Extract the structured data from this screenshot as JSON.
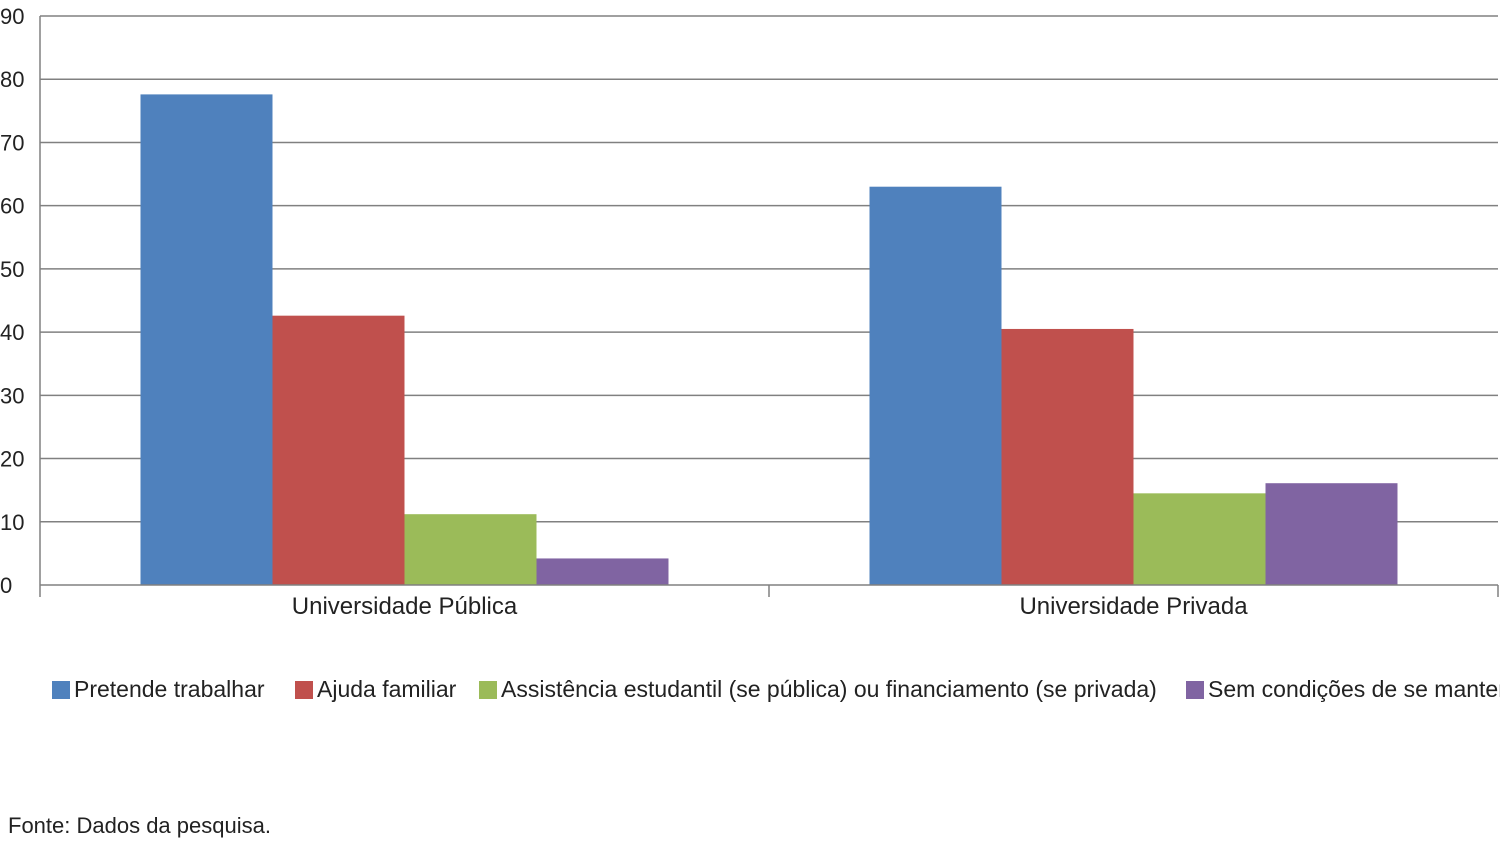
{
  "chart_data": {
    "type": "bar",
    "categories": [
      "Universidade Pública",
      "Universidade Privada"
    ],
    "series": [
      {
        "name": "Pretende trabalhar",
        "color": "#4F81BD",
        "values": [
          77.6,
          63.0
        ]
      },
      {
        "name": "Ajuda familiar",
        "color": "#C0504D",
        "values": [
          42.6,
          40.5
        ]
      },
      {
        "name": "Assistência estudantil (se pública) ou financiamento (se privada)",
        "color": "#9BBB59",
        "values": [
          11.2,
          14.5
        ]
      },
      {
        "name": "Sem condições de se manter",
        "color": "#8064A2",
        "values": [
          4.2,
          16.1
        ]
      }
    ],
    "ylim": [
      0,
      90
    ],
    "yticks": [
      "0",
      "10",
      "20",
      "30",
      "40",
      "50",
      "60",
      "70",
      "80",
      "90"
    ],
    "grid": true,
    "legend_position": "bottom"
  },
  "source_note": "Fonte: Dados da pesquisa."
}
